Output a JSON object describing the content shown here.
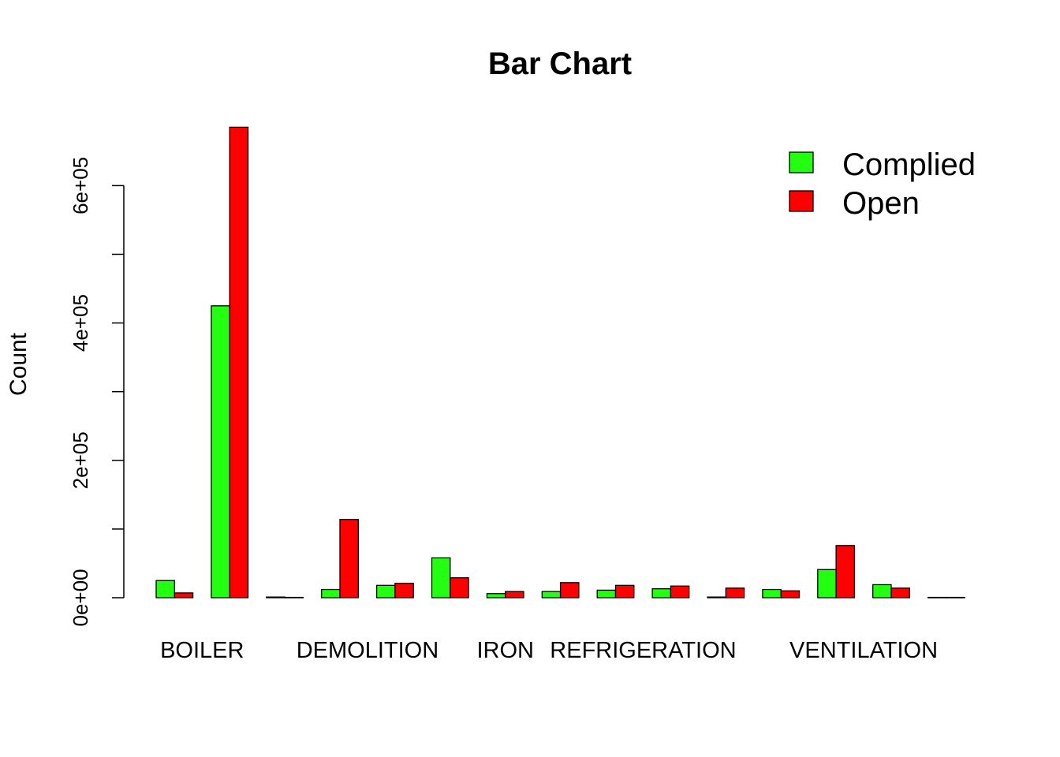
{
  "chart_data": {
    "type": "bar",
    "title": "Bar Chart",
    "xlabel": "",
    "ylabel": "Count",
    "ylim": [
      0,
      690000
    ],
    "yticks": [
      0,
      200000,
      400000,
      600000
    ],
    "ytick_labels": [
      "0e+00",
      "2e+05",
      "4e+05",
      "6e+05"
    ],
    "yminor_ticks": [
      100000,
      300000,
      500000
    ],
    "grid": false,
    "legend_position": "top-right",
    "categories": [
      "BOILER",
      "",
      "",
      "DEMOLITION",
      "",
      "",
      "IRON",
      "",
      "REFRIGERATION",
      "",
      "",
      "",
      "VENTILATION",
      "",
      ""
    ],
    "labeled_groups": [
      [
        0,
        1
      ],
      [
        3,
        4
      ],
      [
        6
      ],
      [
        8,
        9
      ],
      [
        12,
        13
      ]
    ],
    "series": [
      {
        "name": "Complied",
        "color": "#22ff11",
        "values": [
          25000,
          425000,
          1000,
          12000,
          18000,
          58000,
          6000,
          9000,
          11000,
          13000,
          1000,
          12000,
          41000,
          19000,
          500
        ]
      },
      {
        "name": "Open",
        "color": "#ff0000",
        "values": [
          7000,
          685000,
          500,
          114000,
          21000,
          29000,
          9000,
          22000,
          18000,
          17000,
          14000,
          10000,
          76000,
          14000,
          500
        ]
      }
    ]
  }
}
